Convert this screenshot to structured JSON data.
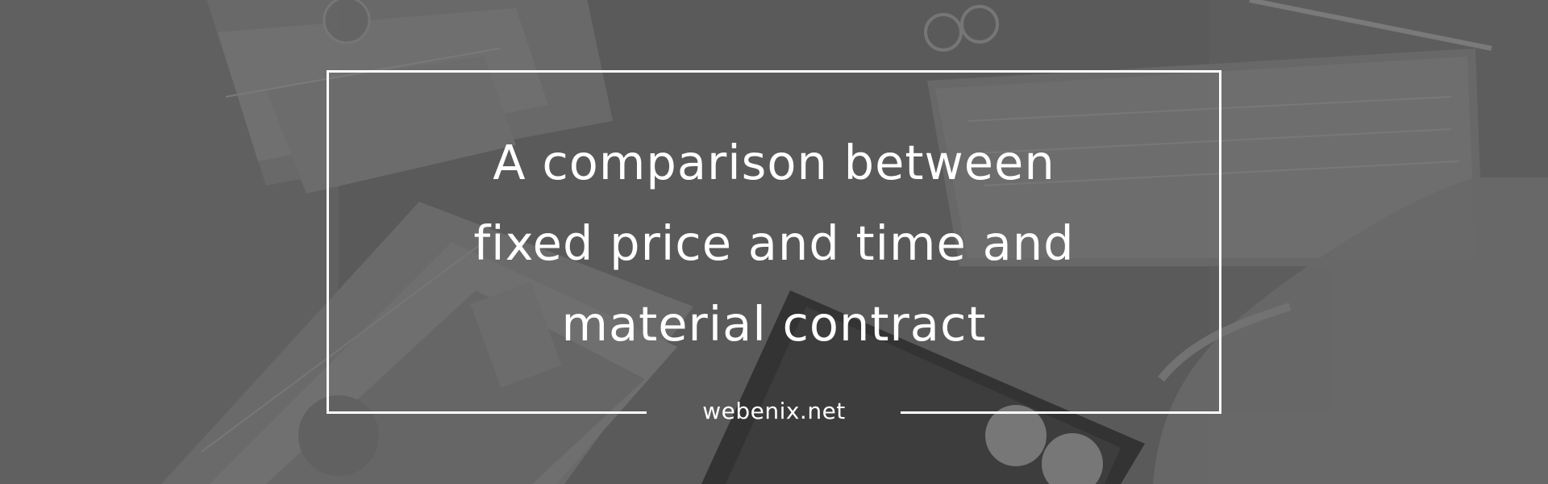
{
  "banner": {
    "title_lines": [
      "A comparison between",
      "fixed price and time and",
      "material contract"
    ],
    "site_label": "webenix.net"
  },
  "colors": {
    "overlay": "#595959",
    "text": "#ffffff",
    "frame": "#ffffff"
  }
}
